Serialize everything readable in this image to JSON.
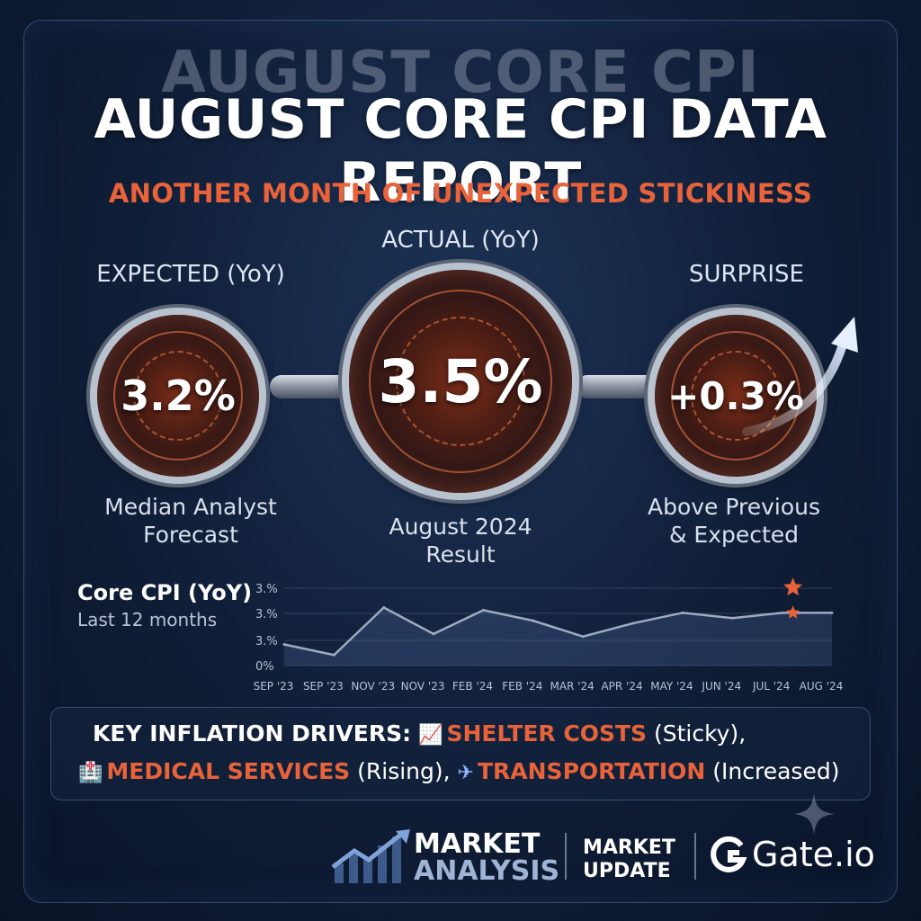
{
  "header": {
    "ghost_title": "AUGUST CORE CPI",
    "title": "AUGUST CORE CPI DATA REPORT",
    "subtitle": "ANOTHER MONTH OF UNEXPECTED STICKINESS"
  },
  "metrics": {
    "expected": {
      "label": "EXPECTED (YoY)",
      "value": "3.2%",
      "caption_line1": "Median Analyst",
      "caption_line2": "Forecast"
    },
    "actual": {
      "label": "ACTUAL (YoY)",
      "value": "3.5%",
      "caption_line1": "August 2024",
      "caption_line2": "Result"
    },
    "surprise": {
      "label": "SURPRISE",
      "value": "+0.3%",
      "caption_line1": "Above Previous",
      "caption_line2": "& Expected"
    }
  },
  "chart": {
    "title": "Core CPI (YoY)",
    "subtitle": "Last 12 months"
  },
  "chart_data": {
    "type": "area",
    "title": "Core CPI (YoY)",
    "subtitle": "Last 12 months",
    "categories": [
      "SEP '23",
      "SEP '23",
      "NOV '23",
      "NOV '23",
      "FEB '24",
      "FEB '24",
      "MAR '24",
      "APR '24",
      "MAY '24",
      "JUN '24",
      "JUL '24",
      "AUG '24"
    ],
    "values": [
      2.9,
      2.7,
      3.6,
      3.1,
      3.55,
      3.35,
      3.05,
      3.3,
      3.5,
      3.4,
      3.5,
      3.5
    ],
    "y_tick_labels": [
      "3.%",
      "3.%",
      "3.%",
      "0%"
    ],
    "highlight_markers": [
      "star",
      "star"
    ],
    "grid": true,
    "accent_color": "#e8623a",
    "line_color": "#9eabc0"
  },
  "drivers": {
    "label": "KEY INFLATION DRIVERS:",
    "items": [
      {
        "icon": "chart-up-icon",
        "glyph": "📈",
        "name": "SHELTER COSTS",
        "status": "(Sticky),",
        "sep": ""
      },
      {
        "icon": "hospital-icon",
        "glyph": "🏥",
        "name": "MEDICAL SERVICES",
        "status": "(Rising),",
        "sep": ""
      },
      {
        "icon": "airplane-icon",
        "glyph": "✈",
        "name": "TRANSPORTATION",
        "status": "(Increased)",
        "sep": ""
      }
    ]
  },
  "footer": {
    "market_analysis_line1": "MARKET",
    "market_analysis_line2": "ANALYSIS",
    "market_update_line1": "MARKET",
    "market_update_line2": "UPDATE",
    "brand": "Gate.io"
  },
  "colors": {
    "accent": "#e8623a",
    "background": "#0f1d36",
    "text": "#ffffff"
  }
}
